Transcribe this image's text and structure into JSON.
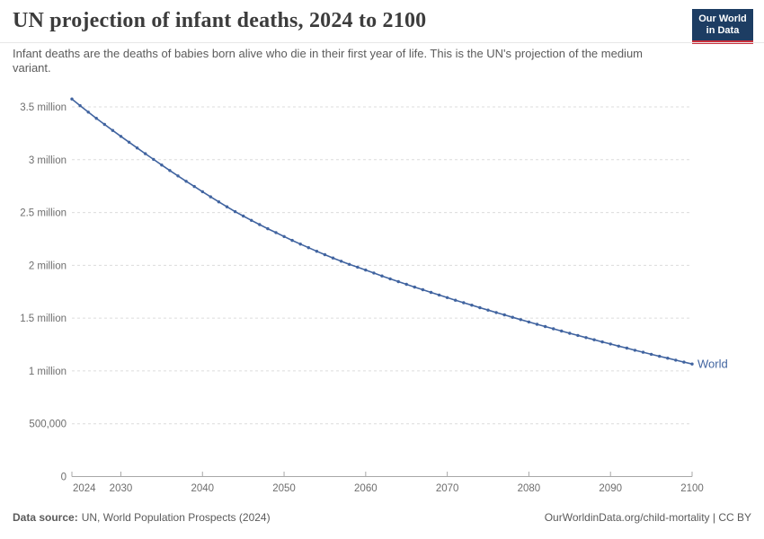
{
  "header": {
    "title": "UN projection of infant deaths, 2024 to 2100",
    "subtitle": "Infant deaths are the deaths of babies born alive who die in their first year of life. This is the UN's projection of the medium variant.",
    "logo": {
      "line1": "Our World",
      "line2": "in Data",
      "background_color": "#1d3d63",
      "stripe_color": "#c9303c"
    }
  },
  "chart_data": {
    "type": "line",
    "title": "UN projection of infant deaths, 2024 to 2100",
    "xlim": [
      2024,
      2100
    ],
    "ylim_millions": [
      0,
      3.5
    ],
    "grid": "horizontal-dashed",
    "legend_position": "end-of-line-label",
    "x_ticks": [
      2024,
      2030,
      2040,
      2050,
      2060,
      2070,
      2080,
      2090,
      2100
    ],
    "y_ticks": [
      {
        "value": 0,
        "label": "0"
      },
      {
        "value": 0.5,
        "label": "500,000"
      },
      {
        "value": 1,
        "label": "1 million"
      },
      {
        "value": 1.5,
        "label": "1.5 million"
      },
      {
        "value": 2,
        "label": "2 million"
      },
      {
        "value": 2.5,
        "label": "2.5 million"
      },
      {
        "value": 3,
        "label": "3 million"
      },
      {
        "value": 3.5,
        "label": "3.5 million"
      }
    ],
    "unit": "million infant deaths",
    "series": [
      {
        "name": "World",
        "color": "#4164A0",
        "start_year": 2024,
        "end_year": 2100,
        "values_millions": [
          3.575,
          3.512,
          3.451,
          3.392,
          3.334,
          3.277,
          3.221,
          3.166,
          3.111,
          3.057,
          3.003,
          2.95,
          2.898,
          2.847,
          2.796,
          2.746,
          2.697,
          2.649,
          2.601,
          2.554,
          2.508,
          2.467,
          2.426,
          2.386,
          2.347,
          2.31,
          2.273,
          2.236,
          2.201,
          2.167,
          2.133,
          2.101,
          2.069,
          2.039,
          2.009,
          1.983,
          1.955,
          1.927,
          1.899,
          1.872,
          1.846,
          1.82,
          1.794,
          1.769,
          1.744,
          1.719,
          1.694,
          1.67,
          1.646,
          1.623,
          1.599,
          1.576,
          1.553,
          1.531,
          1.508,
          1.486,
          1.464,
          1.442,
          1.42,
          1.399,
          1.378,
          1.357,
          1.336,
          1.316,
          1.295,
          1.275,
          1.255,
          1.235,
          1.216,
          1.196,
          1.177,
          1.158,
          1.139,
          1.121,
          1.102,
          1.084,
          1.066
        ]
      }
    ]
  },
  "footer": {
    "data_source_label": "Data source:",
    "data_source": "UN, World Population Prospects (2024)",
    "attribution": "OurWorldinData.org/child-mortality | CC BY"
  },
  "colors": {
    "line": "#4164A0",
    "gridline": "#dcdcdc",
    "axis": "#a8a8a8",
    "tick_text": "#6e6e6e",
    "title_text": "#3c3c3c",
    "subtitle_text": "#5b5b5b"
  }
}
